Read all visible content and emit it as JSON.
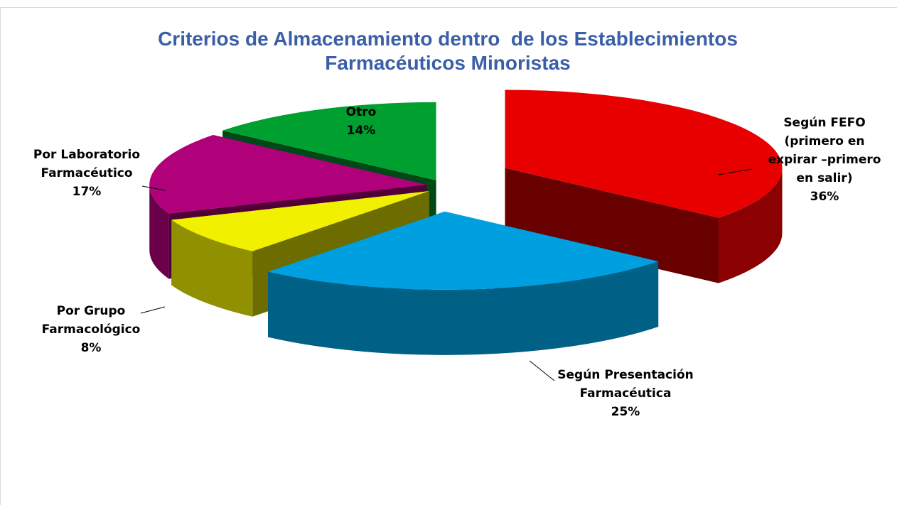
{
  "chart_data": {
    "type": "pie3d",
    "title": "Criterios de Almacenamiento dentro  de los Establecimientos Farmacéuticos Minoristas",
    "categories": [
      "Según FEFO (primero en expirar –primero en salir)",
      "Según Presentación Farmacéutica",
      "Por Grupo Farmacológico",
      "Por Laboratorio Farmacéutico",
      "Otro"
    ],
    "values": [
      36,
      25,
      8,
      17,
      14
    ],
    "value_labels": [
      "36%",
      "25%",
      "8%",
      "17%",
      "14%"
    ],
    "colors": [
      "#e80000",
      "#00a0e0",
      "#f0f000",
      "#b0007a",
      "#00a030"
    ]
  }
}
